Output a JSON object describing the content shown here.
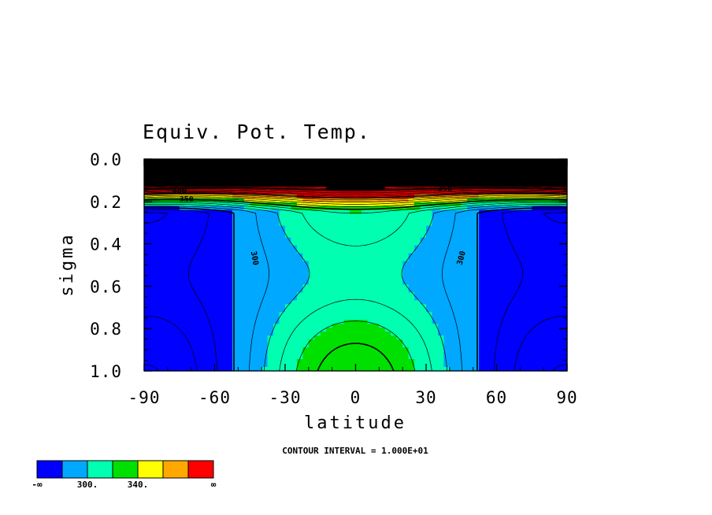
{
  "chart_data": {
    "type": "contour",
    "title": "Equiv. Pot. Temp.",
    "xlabel": "latitude",
    "ylabel": "sigma",
    "xlim": [
      -90,
      90
    ],
    "ylim": [
      1.0,
      0.0
    ],
    "y_inverted": true,
    "x_ticks": [
      "-90",
      "-60",
      "-30",
      "0",
      "30",
      "60",
      "90"
    ],
    "x_tick_values": [
      -90,
      -60,
      -30,
      0,
      30,
      60,
      90
    ],
    "y_ticks": [
      "0.0",
      "0.2",
      "0.4",
      "0.6",
      "0.8",
      "1.0"
    ],
    "y_tick_values": [
      0.0,
      0.2,
      0.4,
      0.6,
      0.8,
      1.0
    ],
    "contour_interval_text": "CONTOUR INTERVAL = 1.000E+01",
    "contour_interval": 10,
    "contour_labels": [
      {
        "text": "300",
        "lat": -44,
        "sigma": 0.47
      },
      {
        "text": "300",
        "lat": 46,
        "sigma": 0.47
      },
      {
        "text": "350",
        "lat": 38,
        "sigma": 0.15
      },
      {
        "text": "350",
        "lat": -72,
        "sigma": 0.2
      },
      {
        "text": "400",
        "lat": -75,
        "sigma": 0.16
      },
      {
        "text": "450",
        "lat": -75,
        "sigma": 0.11
      },
      {
        "text": "400",
        "lat": 40,
        "sigma": 0.09
      },
      {
        "text": "450",
        "lat": 40,
        "sigma": 0.03
      }
    ],
    "fill_levels": {
      "breaks": [
        280,
        300,
        320,
        340,
        360,
        380,
        400
      ],
      "colors": [
        "#0000ff",
        "#00a8ff",
        "#00ffb0",
        "#00e000",
        "#ffff00",
        "#ffa800",
        "#ff0000"
      ]
    },
    "colorbar": {
      "labels": [
        "-∞",
        "300.",
        "340.",
        "∞"
      ],
      "label_positions": [
        0,
        2,
        4,
        7
      ]
    }
  }
}
